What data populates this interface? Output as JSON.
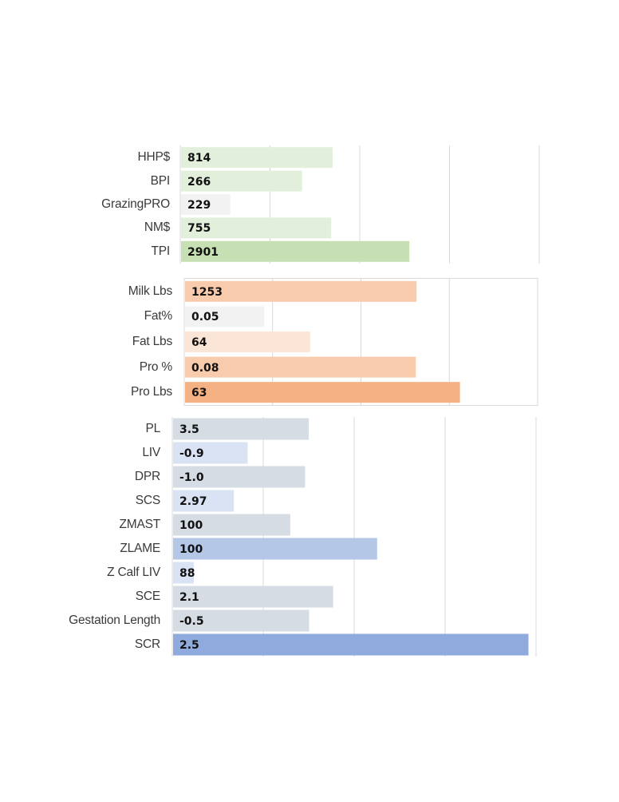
{
  "chart_data": [
    {
      "type": "bar",
      "orientation": "horizontal",
      "grid": "vertical",
      "categories": [
        "HHP$",
        "BPI",
        "GrazingPRO",
        "NM$",
        "TPI"
      ],
      "values": [
        814,
        266,
        229,
        755,
        2901
      ],
      "value_labels": [
        "814",
        "266",
        "229",
        "755",
        "2901"
      ],
      "colors": [
        "#e2efda",
        "#e2efda",
        "#f2f2f2",
        "#e2efda",
        "#c6e0b4"
      ],
      "bar_fraction": [
        0.422,
        0.337,
        0.137,
        0.418,
        0.636
      ]
    },
    {
      "type": "bar",
      "orientation": "horizontal",
      "grid": "vertical",
      "border": true,
      "categories": [
        "Milk Lbs",
        "Fat%",
        "Fat Lbs",
        "Pro %",
        "Pro Lbs"
      ],
      "values": [
        1253,
        0.05,
        64,
        0.08,
        63
      ],
      "value_labels": [
        "1253",
        "0.05",
        "64",
        "0.08",
        "63"
      ],
      "colors": [
        "#f8cbad",
        "#f2f2f2",
        "#fbe5d6",
        "#f8cbad",
        "#f4b183"
      ],
      "bar_fraction": [
        0.655,
        0.224,
        0.354,
        0.653,
        0.778
      ]
    },
    {
      "type": "bar",
      "orientation": "horizontal",
      "grid": "vertical",
      "categories": [
        "PL",
        "LIV",
        "DPR",
        "SCS",
        "ZMAST",
        "ZLAME",
        "Z Calf LIV",
        "SCE",
        "Gestation Length",
        "SCR"
      ],
      "values": [
        3.5,
        -0.9,
        -1.0,
        2.97,
        100,
        100,
        88,
        2.1,
        -0.5,
        2.5
      ],
      "value_labels": [
        "3.5",
        "-0.9",
        "-1.0",
        "2.97",
        "100",
        "100",
        "88",
        "2.1",
        "-0.5",
        "2.5"
      ],
      "colors": [
        "#d6dce4",
        "#dae3f3",
        "#d6dce4",
        "#dae3f3",
        "#d6dce4",
        "#b4c7e7",
        "#dae3f3",
        "#d6dce4",
        "#d6dce4",
        "#8faadc"
      ],
      "bar_fraction": [
        0.373,
        0.205,
        0.363,
        0.167,
        0.322,
        0.561,
        0.057,
        0.44,
        0.374,
        0.977
      ]
    }
  ]
}
